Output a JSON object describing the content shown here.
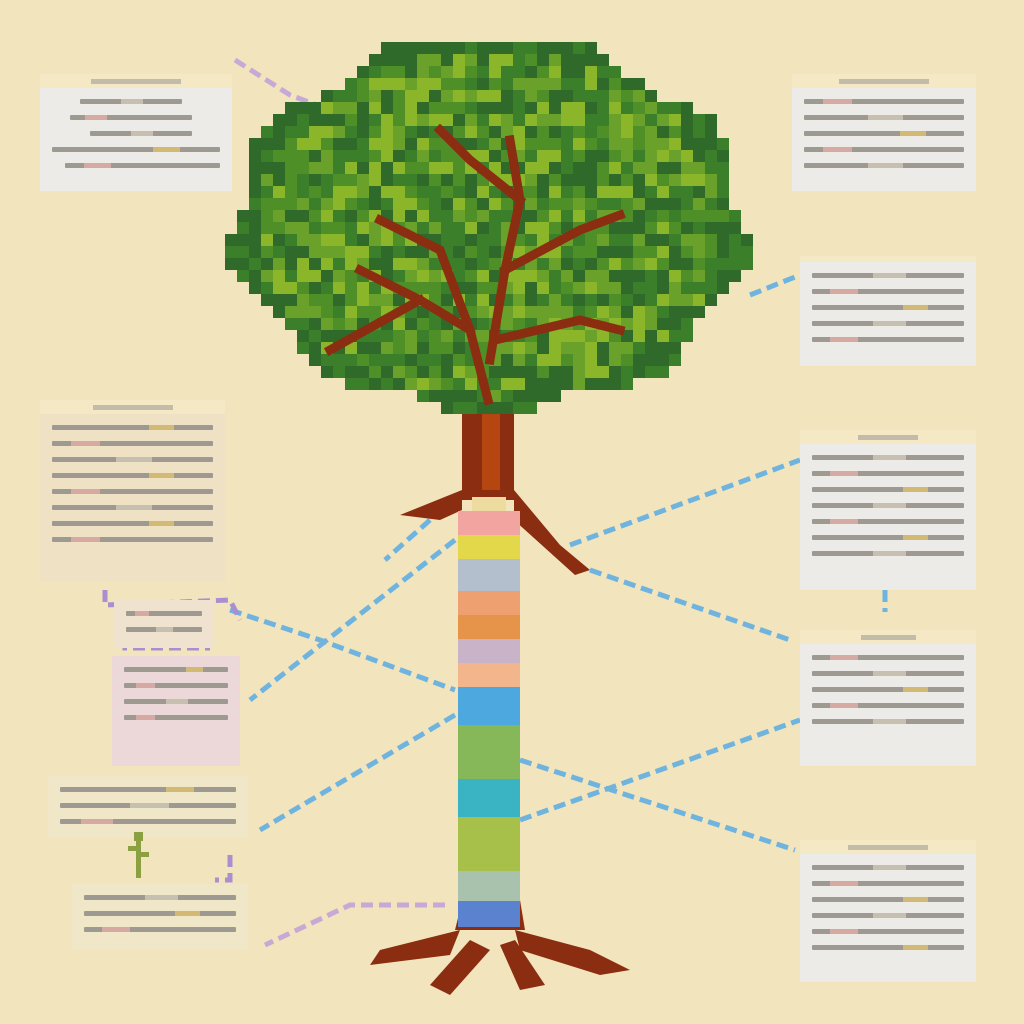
{
  "colors": {
    "background": "#f2e4bd",
    "panel": "#ecebe7",
    "leaf_dark": "#2f6a2a",
    "leaf_mid": "#4e8f28",
    "leaf_light": "#8cb62a",
    "trunk": "#8a2d10",
    "trunk_light": "#b5460f",
    "connector_blue": "#6fb3df",
    "connector_purple": "#c8a8d6"
  },
  "trunk_layers": [
    {
      "color": "#eedb9f"
    },
    {
      "color": "#f2a5a0"
    },
    {
      "color": "#e2d84a"
    },
    {
      "color": "#b3bfcc"
    },
    {
      "color": "#efa070"
    },
    {
      "color": "#e5944a"
    },
    {
      "color": "#c8b3c8"
    },
    {
      "color": "#f3b58c"
    },
    {
      "color": "#4da8df"
    },
    {
      "color": "#86b85a"
    },
    {
      "color": "#3ab3c3"
    },
    {
      "color": "#a6c04a"
    },
    {
      "color": "#a9c2ae"
    },
    {
      "color": "#5b82cf"
    }
  ],
  "icons": {
    "sprout": "sprout-icon"
  }
}
